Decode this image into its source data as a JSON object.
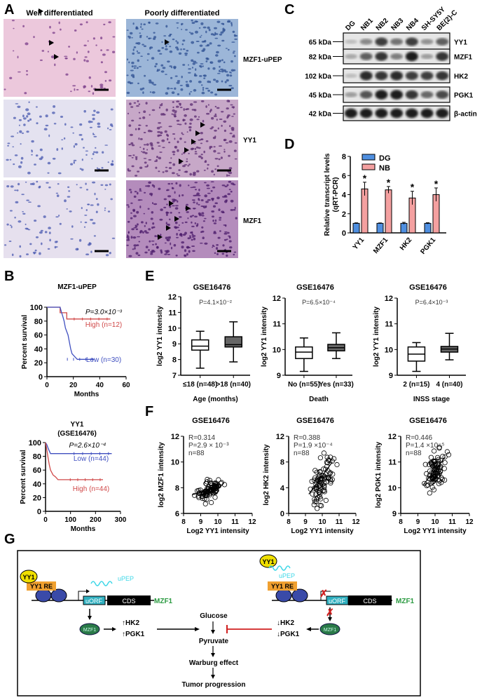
{
  "panel_labels": {
    "A": "A",
    "B": "B",
    "C": "C",
    "D": "D",
    "E": "E",
    "F": "F",
    "G": "G"
  },
  "panel_a": {
    "col_titles": [
      "Well differentiated",
      "Poorly differentiated"
    ],
    "row_labels": [
      "MZF1-uPEP",
      "YY1",
      "MZF1"
    ]
  },
  "panel_c": {
    "lanes": [
      "DG",
      "NB1",
      "NB2",
      "NB3",
      "NB4",
      "SH-SY5Y",
      "BE(2)-C"
    ],
    "rows": [
      {
        "kda": "65 kDa",
        "protein": "YY1",
        "intensity": [
          0.2,
          0.45,
          0.8,
          0.55,
          0.8,
          0.4,
          0.65
        ]
      },
      {
        "kda": "82 kDa",
        "protein": "MZF1",
        "intensity": [
          0.3,
          0.65,
          0.85,
          0.5,
          0.95,
          0.35,
          0.85
        ]
      },
      {
        "kda": "102 kDa",
        "protein": "HK2",
        "intensity": [
          0.2,
          0.9,
          0.85,
          0.9,
          0.8,
          0.8,
          0.85
        ]
      },
      {
        "kda": "45 kDa",
        "protein": "PGK1",
        "intensity": [
          0.35,
          0.7,
          0.95,
          0.95,
          0.85,
          0.6,
          0.75
        ]
      },
      {
        "kda": "42 kDa",
        "protein": "β-actin",
        "intensity": [
          0.95,
          0.95,
          0.95,
          0.95,
          0.95,
          0.95,
          0.95
        ]
      }
    ]
  },
  "chart_data": [
    {
      "type": "bar",
      "panel": "D",
      "ylabel": [
        "Relative transcript levels",
        "(qRT-PCR)"
      ],
      "ylim": [
        0,
        8
      ],
      "yticks": [
        "0",
        "2",
        "4",
        "6",
        "8"
      ],
      "categories": [
        "YY1",
        "MZF1",
        "HK2",
        "PGK1"
      ],
      "series": [
        {
          "name": "DG",
          "color": "#4f8fe0",
          "values": [
            1.0,
            1.0,
            1.0,
            1.0
          ],
          "errors": [
            0.05,
            0.04,
            0.1,
            0.06
          ]
        },
        {
          "name": "NB",
          "color": "#f4a0a0",
          "values": [
            4.6,
            4.5,
            3.65,
            4.0
          ],
          "errors": [
            0.7,
            0.35,
            0.7,
            0.7
          ]
        }
      ],
      "annotations": [
        "*",
        "*",
        "*",
        "*"
      ]
    },
    {
      "type": "line",
      "panel": "B",
      "title": [
        "MZF1-uPEP"
      ],
      "xlabel": "Months",
      "ylabel": "Percent survival",
      "xlim": [
        0,
        60
      ],
      "ylim": [
        0,
        100
      ],
      "xticks": [
        "0",
        "20",
        "40",
        "60"
      ],
      "yticks": [
        "0",
        "20",
        "40",
        "60",
        "80",
        "100"
      ],
      "pvalue": "P=3.0×10⁻³",
      "series": [
        {
          "name": "High (n=12)",
          "color": "#d04848",
          "points": [
            [
              0,
              100
            ],
            [
              10,
              100
            ],
            [
              10,
              92
            ],
            [
              15,
              92
            ],
            [
              15,
              83
            ],
            [
              48,
              83
            ]
          ]
        },
        {
          "name": "Low (n=30)",
          "color": "#4050c0",
          "points": [
            [
              0,
              100
            ],
            [
              10,
              100
            ],
            [
              11,
              93
            ],
            [
              12,
              87
            ],
            [
              13,
              80
            ],
            [
              14,
              70
            ],
            [
              16,
              60
            ],
            [
              17,
              50
            ],
            [
              18,
              40
            ],
            [
              19,
              33
            ],
            [
              21,
              29
            ],
            [
              23,
              25
            ],
            [
              36,
              25
            ]
          ]
        }
      ]
    },
    {
      "type": "line",
      "panel": "B",
      "title": [
        "YY1",
        "(GSE16476)"
      ],
      "xlabel": "Months",
      "ylabel": "Percent survival",
      "xlim": [
        0,
        300
      ],
      "ylim": [
        0,
        100
      ],
      "xticks": [
        "0",
        "100",
        "200",
        "300"
      ],
      "yticks": [
        "0",
        "20",
        "40",
        "60",
        "80",
        "100"
      ],
      "pvalue": "P=2.6×10⁻⁴",
      "series": [
        {
          "name": "Low (n=44)",
          "color": "#4050c0",
          "points": [
            [
              0,
              100
            ],
            [
              5,
              97
            ],
            [
              10,
              92
            ],
            [
              15,
              88
            ],
            [
              20,
              84
            ],
            [
              265,
              84
            ]
          ]
        },
        {
          "name": "High (n=44)",
          "color": "#d04848",
          "points": [
            [
              0,
              100
            ],
            [
              5,
              90
            ],
            [
              10,
              78
            ],
            [
              15,
              68
            ],
            [
              20,
              60
            ],
            [
              30,
              53
            ],
            [
              40,
              50
            ],
            [
              50,
              46
            ],
            [
              230,
              46
            ]
          ]
        }
      ]
    },
    {
      "type": "box",
      "panel": "E",
      "title": "GSE16476",
      "pvalue": "P=4.1×10⁻²",
      "xlabel": "Age (months)",
      "ylabel": "log2 YY1 intensity",
      "ylim": [
        7,
        12
      ],
      "yticks": [
        "7",
        "8",
        "9",
        "10",
        "11",
        "12"
      ],
      "categories": [
        "≤18 (n=48)",
        ">18 (n=40)"
      ],
      "boxes": [
        {
          "min": 7.45,
          "q1": 8.6,
          "median": 8.85,
          "q3": 9.25,
          "max": 9.8,
          "fill": "#ffffff"
        },
        {
          "min": 7.85,
          "q1": 8.8,
          "median": 8.95,
          "q3": 9.45,
          "max": 10.4,
          "fill": "#666666"
        }
      ]
    },
    {
      "type": "box",
      "panel": "E",
      "title": "GSE16476",
      "pvalue": "P=6.5×10⁻⁴",
      "xlabel": "Death",
      "ylabel": "log2 YY1 intensity",
      "ylim": [
        9,
        12
      ],
      "yticks": [
        "9",
        "10",
        "11",
        "12"
      ],
      "categories": [
        "No (n=55)",
        "Yes (n=33)"
      ],
      "boxes": [
        {
          "min": 9.15,
          "q1": 9.65,
          "median": 9.9,
          "q3": 10.1,
          "max": 10.45,
          "fill": "#ffffff"
        },
        {
          "min": 9.65,
          "q1": 9.95,
          "median": 10.07,
          "q3": 10.2,
          "max": 10.65,
          "fill": "#666666"
        }
      ]
    },
    {
      "type": "box",
      "panel": "E",
      "title": "GSE16476",
      "pvalue": "P=6.4×10⁻³",
      "xlabel": "INSS stage",
      "ylabel": "log2 YY1 intensity",
      "ylim": [
        9,
        12
      ],
      "yticks": [
        "9",
        "10",
        "11",
        "12"
      ],
      "categories": [
        "2 (n=15)",
        "4 (n=40)"
      ],
      "boxes": [
        {
          "min": 9.15,
          "q1": 9.55,
          "median": 9.82,
          "q3": 10.1,
          "max": 10.27,
          "fill": "#ffffff"
        },
        {
          "min": 9.6,
          "q1": 9.9,
          "median": 10.02,
          "q3": 10.12,
          "max": 10.63,
          "fill": "#666666"
        }
      ]
    },
    {
      "type": "scatter",
      "panel": "F",
      "title": "GSE16476",
      "stats": [
        "R=0.314",
        "P=2.9 × 10⁻³",
        "n=88"
      ],
      "xlabel": "Log2 YY1 intensity",
      "ylabel": "log2 MZF1 intensity",
      "xlim": [
        8,
        12
      ],
      "ylim": [
        6,
        12
      ],
      "xticks": [
        "8",
        "9",
        "10",
        "11",
        "12"
      ],
      "yticks": [
        "6",
        "8",
        "10",
        "12"
      ],
      "n": 88,
      "x_mean": 9.5,
      "x_sd": 0.35,
      "y_mean": 7.8,
      "y_sd": 0.4,
      "fit": [
        [
          8.5,
          7.45
        ],
        [
          10.2,
          8.1
        ]
      ]
    },
    {
      "type": "scatter",
      "panel": "F",
      "title": "GSE16476",
      "stats": [
        "R=0.388",
        "P=1.9 ×10⁻⁴",
        "n=88"
      ],
      "xlabel": "Log2 YY1 intensity",
      "ylabel": "log2 HK2 intensity",
      "xlim": [
        8,
        12
      ],
      "ylim": [
        0,
        12
      ],
      "xticks": [
        "8",
        "9",
        "10",
        "11",
        "12"
      ],
      "yticks": [
        "0",
        "4",
        "8",
        "12"
      ],
      "n": 88,
      "x_mean": 10.0,
      "x_sd": 0.3,
      "y_mean": 5.2,
      "y_sd": 2.2,
      "fit": [
        [
          9.2,
          3.0
        ],
        [
          10.6,
          8.0
        ]
      ]
    },
    {
      "type": "scatter",
      "panel": "F",
      "title": "GSE16476",
      "stats": [
        "R=0.446",
        "P=1.4 ×10⁻⁵",
        "n=88"
      ],
      "xlabel": "Log2 YY1 intensity",
      "ylabel": "log2 PGK1 intensity",
      "xlim": [
        8,
        12
      ],
      "ylim": [
        9,
        12
      ],
      "xticks": [
        "8",
        "9",
        "10",
        "11",
        "12"
      ],
      "yticks": [
        "9",
        "10",
        "11",
        "12"
      ],
      "n": 88,
      "x_mean": 10.0,
      "x_sd": 0.3,
      "y_mean": 10.7,
      "y_sd": 0.45,
      "fit": [
        [
          9.3,
          10.1
        ],
        [
          10.6,
          11.2
        ]
      ]
    }
  ],
  "panel_g": {
    "yy1": "YY1",
    "yy1_re": "YY1 RE",
    "upep": "uPEP",
    "uorf": "uORF",
    "cds": "CDS",
    "mzf1_gene": "MZF1",
    "mzf1_protein": "MZF1",
    "hk2_up": "↑HK2",
    "pgk1_up": "↑PGK1",
    "hk2_down": "↓HK2",
    "pgk1_down": "↓PGK1",
    "glucose": "Glucose",
    "pyruvate": "Pyruvate",
    "warburg": "Warburg effect",
    "tumor": "Tumor progression",
    "colors": {
      "yy1": "#f0e000",
      "yy1_re": "#f0a030",
      "upep": "#40d8e8",
      "uorf": "#30b0c0",
      "mzf1": "#2a7a48",
      "inhibit": "#d02020"
    }
  }
}
